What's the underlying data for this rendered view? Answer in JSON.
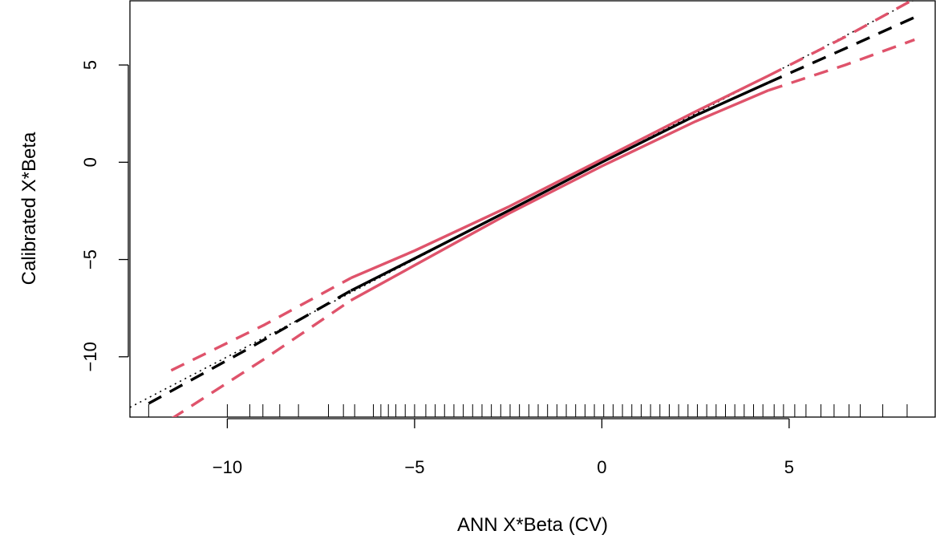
{
  "chart_data": {
    "type": "line",
    "title": "",
    "xlabel": "ANN X*Beta (CV)",
    "ylabel": "Calibrated X*Beta",
    "xlim": [
      -12.6,
      8.9
    ],
    "ylim": [
      -13.1,
      8.3
    ],
    "x_ticks": [
      -10,
      -5,
      0,
      5
    ],
    "x_tick_labels": [
      "−10",
      "−5",
      "0",
      "5"
    ],
    "y_ticks": [
      -10,
      -5,
      0,
      5
    ],
    "y_tick_labels": [
      "−10",
      "−5",
      "0",
      "5"
    ],
    "grid": false,
    "legend": "none",
    "colors": {
      "estimate": "#000000",
      "bands": "#DF536B",
      "identity": "#000000"
    },
    "series": [
      {
        "role": "identity",
        "style": "dotted",
        "x": [
          -12.6,
          8.9
        ],
        "y": [
          -12.6,
          8.9
        ]
      },
      {
        "role": "estimate",
        "style": "solid",
        "x": [
          -6.7,
          -5,
          -2.5,
          0,
          2.5,
          4.45
        ],
        "y": [
          -6.6,
          -4.95,
          -2.5,
          0,
          2.4,
          4.1
        ]
      },
      {
        "role": "estimate",
        "style": "dashed",
        "x": [
          -12.1,
          -9.5,
          -6.7
        ],
        "y": [
          -12.4,
          -9.65,
          -6.6
        ]
      },
      {
        "role": "estimate",
        "style": "dashed",
        "x": [
          4.45,
          6.5,
          8.35
        ],
        "y": [
          4.1,
          5.85,
          7.45
        ]
      },
      {
        "role": "upper-band",
        "style": "solid",
        "x": [
          -6.7,
          -5,
          -2.5,
          0,
          2.5,
          4.45
        ],
        "y": [
          -5.95,
          -4.55,
          -2.3,
          0.15,
          2.6,
          4.45
        ]
      },
      {
        "role": "upper-band",
        "style": "dashed",
        "x": [
          -11.5,
          -9,
          -6.7
        ],
        "y": [
          -10.7,
          -8.35,
          -5.95
        ]
      },
      {
        "role": "upper-band",
        "style": "dashed",
        "x": [
          4.45,
          6.5,
          8.35
        ],
        "y": [
          4.45,
          6.45,
          8.4
        ]
      },
      {
        "role": "lower-band",
        "style": "solid",
        "x": [
          -6.7,
          -5,
          -2.5,
          0,
          2.5,
          4.45
        ],
        "y": [
          -7.1,
          -5.3,
          -2.65,
          -0.2,
          2.1,
          3.7
        ]
      },
      {
        "role": "lower-band",
        "style": "dashed",
        "x": [
          -11.5,
          -9,
          -6.7
        ],
        "y": [
          -13.2,
          -10.1,
          -7.1
        ]
      },
      {
        "role": "lower-band",
        "style": "dashed",
        "x": [
          4.45,
          6.5,
          8.35
        ],
        "y": [
          3.7,
          5.0,
          6.3
        ]
      }
    ],
    "rug_x": [
      -12.1,
      -10,
      -9.4,
      -9.05,
      -8.6,
      -8.1,
      -7.3,
      -6.9,
      -6.6,
      -6.1,
      -5.9,
      -5.7,
      -5.5,
      -5.25,
      -5.0,
      -4.7,
      -4.45,
      -4.2,
      -3.95,
      -3.7,
      -3.45,
      -3.2,
      -2.95,
      -2.7,
      -2.45,
      -2.2,
      -1.95,
      -1.7,
      -1.45,
      -1.2,
      -0.95,
      -0.7,
      -0.45,
      -0.2,
      0.05,
      0.3,
      0.55,
      0.8,
      1.05,
      1.3,
      1.55,
      1.8,
      2.05,
      2.3,
      2.55,
      2.8,
      3.05,
      3.3,
      3.55,
      3.8,
      4.05,
      4.3,
      4.6,
      4.85,
      5.15,
      5.45,
      5.85,
      6.2,
      6.6,
      6.9,
      7.5,
      8.15
    ]
  }
}
